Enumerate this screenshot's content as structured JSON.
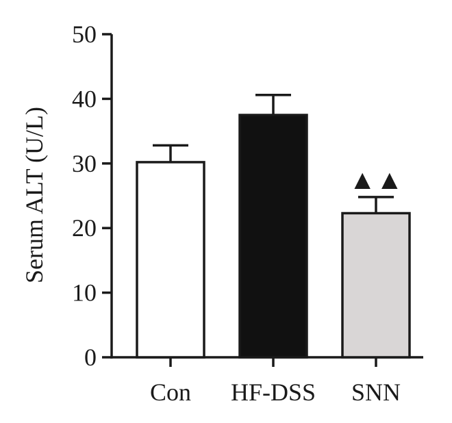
{
  "chart_data": {
    "type": "bar",
    "title": "",
    "xlabel": "",
    "ylabel": "Serum ALT (U/L)",
    "ylim": [
      0,
      50
    ],
    "yticks": [
      0,
      10,
      20,
      30,
      40,
      50
    ],
    "categories": [
      "Con",
      "HF-DSS",
      "SNN"
    ],
    "values": [
      30.2,
      37.5,
      22.3
    ],
    "errors": [
      2.6,
      3.1,
      2.5
    ],
    "colors": [
      "#ffffff",
      "#111111",
      "#d9d6d6"
    ],
    "annotations": [
      {
        "category": "SNN",
        "text": "▲▲"
      }
    ]
  }
}
